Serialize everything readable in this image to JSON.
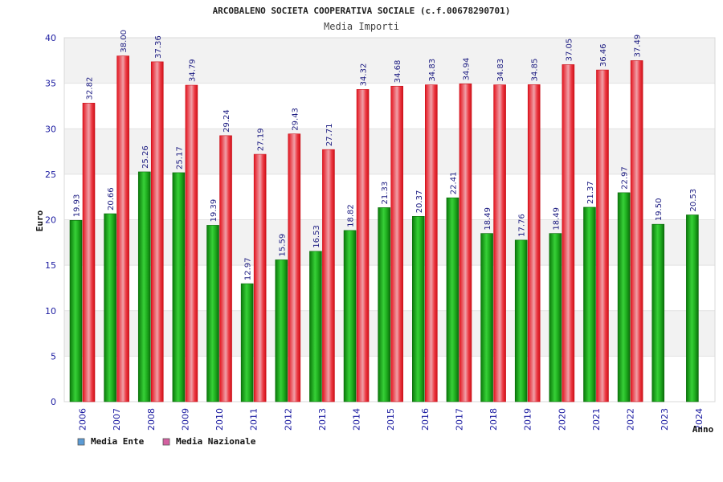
{
  "chart_data": {
    "type": "bar",
    "title": "ARCOBALENO SOCIETA COOPERATIVA SOCIALE (c.f.00678290701)",
    "subtitle": "Media Importi",
    "xlabel": "Anno",
    "ylabel": "Euro",
    "ylim": [
      0,
      40
    ],
    "yticks": [
      "0",
      "5",
      "10",
      "15",
      "20",
      "25",
      "30",
      "35",
      "40"
    ],
    "grid": true,
    "legend_position": "bottom-left",
    "categories": [
      "2006",
      "2007",
      "2008",
      "2009",
      "2010",
      "2011",
      "2012",
      "2013",
      "2014",
      "2015",
      "2016",
      "2017",
      "2018",
      "2019",
      "2020",
      "2021",
      "2022",
      "2023",
      "2024"
    ],
    "series": [
      {
        "name": "Media Ente",
        "color": "#1fae1f",
        "legend_color": "#5b9bd5",
        "values": [
          19.93,
          20.66,
          25.26,
          25.17,
          19.39,
          12.97,
          15.59,
          16.53,
          18.82,
          21.33,
          20.37,
          22.41,
          18.49,
          17.76,
          18.49,
          21.37,
          22.97,
          19.5,
          20.53
        ],
        "labels": [
          "19.93",
          "20.66",
          "25.26",
          "25.17",
          "19.39",
          "12.97",
          "15.59",
          "16.53",
          "18.82",
          "21.33",
          "20.37",
          "22.41",
          "18.49",
          "17.76",
          "18.49",
          "21.37",
          "22.97",
          "19.50",
          "20.53"
        ]
      },
      {
        "name": "Media Nazionale",
        "color": "#e8202a",
        "legend_color": "#d45fa0",
        "values": [
          32.82,
          38.0,
          37.36,
          34.79,
          29.24,
          27.19,
          29.43,
          27.71,
          34.32,
          34.68,
          34.83,
          34.94,
          34.83,
          34.85,
          37.05,
          36.46,
          37.49,
          null,
          null
        ],
        "labels": [
          "32.82",
          "38.00",
          "37.36",
          "34.79",
          "29.24",
          "27.19",
          "29.43",
          "27.71",
          "34.32",
          "34.68",
          "34.83",
          "34.94",
          "34.83",
          "34.85",
          "37.05",
          "36.46",
          "37.49",
          "",
          ""
        ]
      }
    ]
  }
}
